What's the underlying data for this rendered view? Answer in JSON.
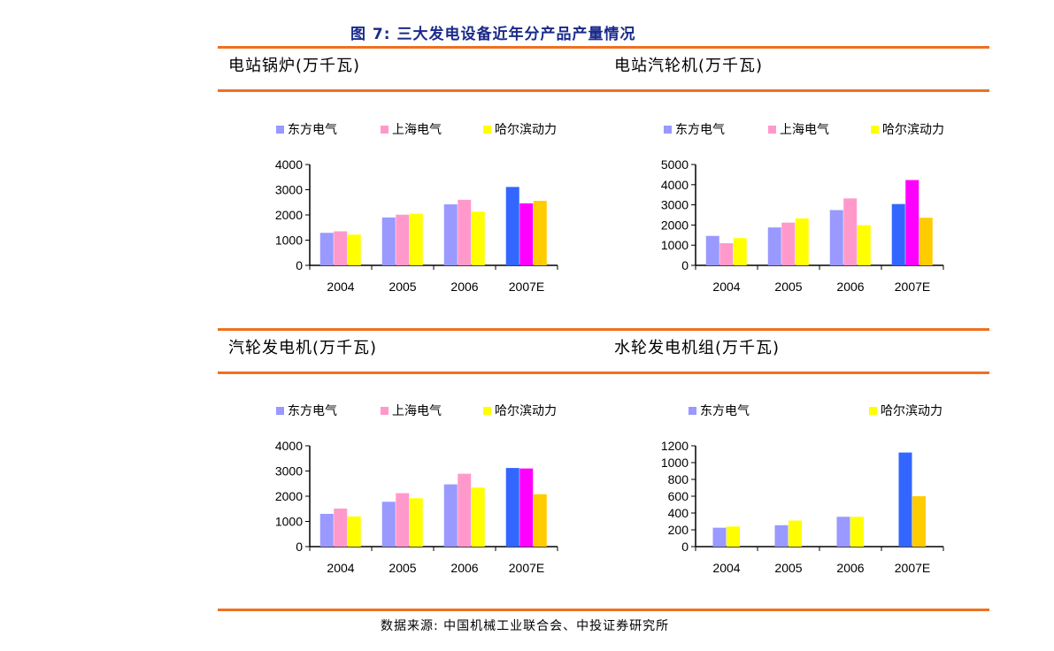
{
  "figure_title": "图 7: 三大发电设备近年分产品产量情况",
  "source": "数据来源: 中国机械工业联合会、中投证券研究所",
  "colors": {
    "rule": "#f07020",
    "title": "#1a2a8a",
    "dongfang": "#9999ff",
    "shanghai": "#ff99cc",
    "harbin": "#ffff00",
    "dongfang_est": "#3366ff",
    "shanghai_est": "#ff00ff",
    "harbin_est": "#ffcc00"
  },
  "chart_data": [
    {
      "type": "bar",
      "title": "电站锅炉(万千瓦)",
      "categories": [
        "2004",
        "2005",
        "2006",
        "2007E"
      ],
      "series": [
        {
          "name": "东方电气",
          "values": [
            1290,
            1900,
            2420,
            3110
          ]
        },
        {
          "name": "上海电气",
          "values": [
            1350,
            2010,
            2600,
            2460
          ]
        },
        {
          "name": "哈尔滨动力",
          "values": [
            1220,
            2050,
            2130,
            2560
          ]
        }
      ],
      "yticks": [
        "0",
        "1000",
        "2000",
        "3000",
        "4000"
      ],
      "ylim": [
        0,
        4000
      ]
    },
    {
      "type": "bar",
      "title": "电站汽轮机(万千瓦)",
      "categories": [
        "2004",
        "2005",
        "2006",
        "2007E"
      ],
      "series": [
        {
          "name": "东方电气",
          "values": [
            1460,
            1880,
            2740,
            3040
          ]
        },
        {
          "name": "上海电气",
          "values": [
            1100,
            2120,
            3320,
            4230
          ]
        },
        {
          "name": "哈尔滨动力",
          "values": [
            1350,
            2330,
            1990,
            2360
          ]
        }
      ],
      "yticks": [
        "0",
        "1000",
        "2000",
        "3000",
        "4000",
        "5000"
      ],
      "ylim": [
        0,
        5000
      ]
    },
    {
      "type": "bar",
      "title": "汽轮发电机(万千瓦)",
      "categories": [
        "2004",
        "2005",
        "2006",
        "2007E"
      ],
      "series": [
        {
          "name": "东方电气",
          "values": [
            1300,
            1780,
            2470,
            3120
          ]
        },
        {
          "name": "上海电气",
          "values": [
            1510,
            2120,
            2890,
            3100
          ]
        },
        {
          "name": "哈尔滨动力",
          "values": [
            1200,
            1920,
            2340,
            2080
          ]
        }
      ],
      "yticks": [
        "0",
        "1000",
        "2000",
        "3000",
        "4000"
      ],
      "ylim": [
        0,
        4000
      ]
    },
    {
      "type": "bar",
      "title": "水轮发电机组(万千瓦)",
      "categories": [
        "2004",
        "2005",
        "2006",
        "2007E"
      ],
      "series": [
        {
          "name": "东方电气",
          "values": [
            225,
            255,
            355,
            1120
          ]
        },
        {
          "name": "哈尔滨动力",
          "values": [
            240,
            310,
            355,
            600
          ]
        }
      ],
      "yticks": [
        "0",
        "200",
        "400",
        "600",
        "800",
        "1000",
        "1200"
      ],
      "ylim": [
        0,
        1200
      ]
    }
  ]
}
